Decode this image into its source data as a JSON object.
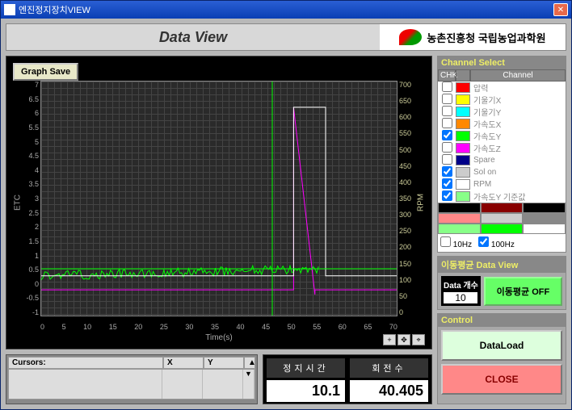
{
  "window": {
    "title": "엔진정지장치VIEW"
  },
  "header": {
    "title": "Data View",
    "org": "농촌진흥청 국립농업과학원"
  },
  "graph": {
    "save_button": "Graph Save",
    "x_label": "Time(s)",
    "y_label_left": "ETC",
    "y_label_right": "RPM",
    "y_left": {
      "min": -1,
      "max": 7,
      "ticks": [
        "7",
        "6.5",
        "6",
        "5.5",
        "5",
        "4.5",
        "4",
        "3.5",
        "3",
        "2.5",
        "2",
        "1.5",
        "1",
        "0.5",
        "0",
        "-0.5",
        "-1"
      ]
    },
    "y_right": {
      "min": 0,
      "max": 700,
      "ticks": [
        "700",
        "650",
        "600",
        "550",
        "500",
        "450",
        "400",
        "350",
        "300",
        "250",
        "200",
        "150",
        "100",
        "50",
        "0"
      ]
    },
    "x": {
      "min": 0,
      "max": 70,
      "ticks": [
        "0",
        "5",
        "10",
        "15",
        "20",
        "25",
        "30",
        "35",
        "40",
        "45",
        "50",
        "55",
        "60",
        "65",
        "70"
      ]
    },
    "series": {
      "green": {
        "color": "#00ff00",
        "baseline_y_frac": 0.83,
        "end_y_frac": 0.8
      },
      "white_step": {
        "color": "#ffffff",
        "rise_x_frac": 0.71,
        "high_y_frac": 0.11,
        "fall_x_frac": 0.8
      },
      "magenta": {
        "color": "#ff00ff",
        "rise_x_frac": 0.71,
        "peak_y_frac": 0.11,
        "fall_x_frac": 0.77
      },
      "cross_x_frac": 0.65
    }
  },
  "cursors": {
    "header": [
      "Cursors:",
      "X",
      "Y"
    ]
  },
  "readout": {
    "stop_time": {
      "label": "정지시간",
      "value": "10.1"
    },
    "rpm": {
      "label": "회전수",
      "value": "40.405"
    }
  },
  "channels": {
    "title": "Channel Select",
    "columns": [
      "CHK",
      "Channel"
    ],
    "rows": [
      {
        "chk": false,
        "color": "#ff0000",
        "name": "압력"
      },
      {
        "chk": false,
        "color": "#ffff00",
        "name": "기울기X"
      },
      {
        "chk": false,
        "color": "#00ffff",
        "name": "기울기Y"
      },
      {
        "chk": false,
        "color": "#ff8800",
        "name": "가속도X"
      },
      {
        "chk": true,
        "color": "#00ff00",
        "name": "가속도Y"
      },
      {
        "chk": false,
        "color": "#ff00ff",
        "name": "가속도Z"
      },
      {
        "chk": false,
        "color": "#000088",
        "name": "Spare"
      },
      {
        "chk": true,
        "color": "#cccccc",
        "name": "Sol on"
      },
      {
        "chk": true,
        "color": "#ffffff",
        "name": "RPM"
      },
      {
        "chk": true,
        "color": "#88ff88",
        "name": "가속도Y 기준값"
      }
    ],
    "palette": [
      [
        "#000000",
        "#880000",
        "#000000"
      ],
      [
        "#ff8888",
        "#cccccc",
        "#888888"
      ],
      [
        "#88ff88",
        "#00ff00",
        "#ffffff"
      ]
    ],
    "hz": {
      "hz10": {
        "label": "10Hz",
        "checked": false
      },
      "hz100": {
        "label": "100Hz",
        "checked": true
      }
    }
  },
  "avg": {
    "title": "이동평균 Data View",
    "count_label": "Data 개수",
    "count_value": "10",
    "off_button": "이동평균 OFF"
  },
  "control": {
    "title": "Control",
    "dataload": "DataLoad",
    "close": "CLOSE"
  }
}
